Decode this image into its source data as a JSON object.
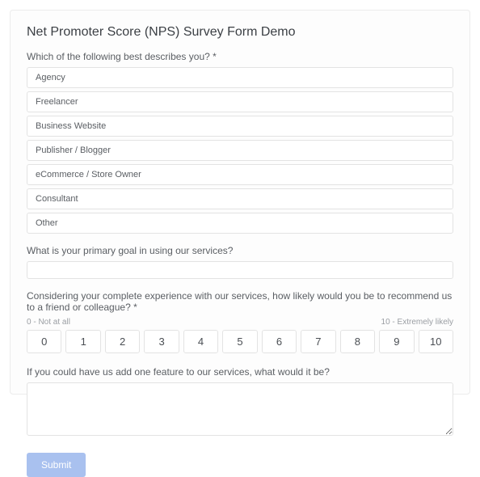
{
  "form": {
    "title": "Net Promoter Score (NPS) Survey Form Demo",
    "q1": {
      "label": "Which of the following best describes you? *",
      "options": [
        "Agency",
        "Freelancer",
        "Business Website",
        "Publisher / Blogger",
        "eCommerce / Store Owner",
        "Consultant",
        "Other"
      ]
    },
    "q2": {
      "label": "What is your primary goal in using our services?",
      "value": ""
    },
    "q3": {
      "label": "Considering your complete experience with our services, how likely would you be to recommend us to a friend or colleague? *",
      "low_label": "0 - Not at all",
      "high_label": "10 - Extremely likely",
      "scale": [
        "0",
        "1",
        "2",
        "3",
        "4",
        "5",
        "6",
        "7",
        "8",
        "9",
        "10"
      ]
    },
    "q4": {
      "label": "If you could have us add one feature to our services, what would it be?",
      "value": ""
    },
    "submit_label": "Submit"
  },
  "colors": {
    "card_border": "#ececec",
    "text_primary": "#3b3f44",
    "text_secondary": "#5a5e63",
    "text_muted": "#9a9ea3",
    "input_border": "#e3e3e3",
    "submit_bg": "#a9c1ef",
    "submit_text": "#ffffff",
    "background": "#fdfdfd"
  }
}
